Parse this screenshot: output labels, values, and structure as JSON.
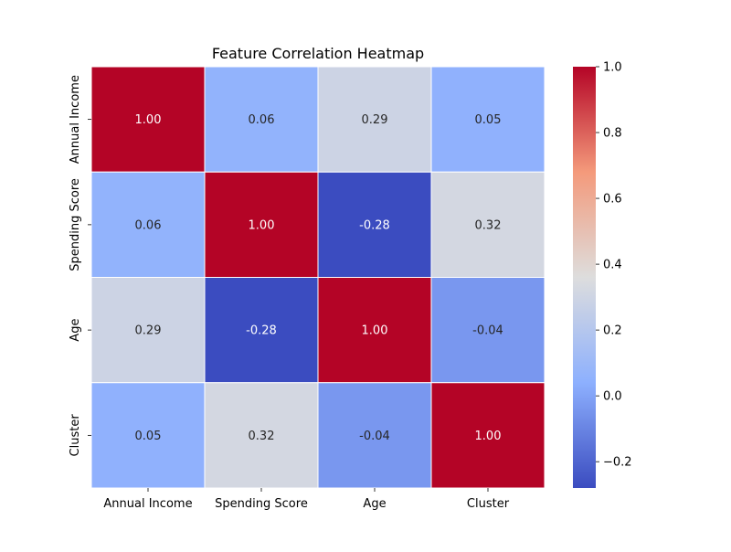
{
  "chart_data": {
    "type": "heatmap",
    "title": "Feature Correlation Heatmap",
    "xlabel": "",
    "ylabel": "",
    "row_labels": [
      "Annual Income",
      "Spending Score",
      "Age",
      "Cluster"
    ],
    "col_labels": [
      "Annual Income",
      "Spending Score",
      "Age",
      "Cluster"
    ],
    "values": [
      [
        1.0,
        0.06,
        0.29,
        0.05
      ],
      [
        0.06,
        1.0,
        -0.28,
        0.32
      ],
      [
        0.29,
        -0.28,
        1.0,
        -0.04
      ],
      [
        0.05,
        0.32,
        -0.04,
        1.0
      ]
    ],
    "annotation_format": "2dp",
    "colormap": "coolwarm",
    "vmin": -0.28,
    "vmax": 1.0,
    "colorbar": {
      "ticks": [
        -0.2,
        0.0,
        0.2,
        0.4,
        0.6,
        0.8,
        1.0
      ],
      "tick_labels": [
        "−0.2",
        "0.0",
        "0.2",
        "0.4",
        "0.6",
        "0.8",
        "1.0"
      ]
    },
    "cell_border_color": "#ffffff",
    "legend": "colorbar-right",
    "grid": false
  }
}
